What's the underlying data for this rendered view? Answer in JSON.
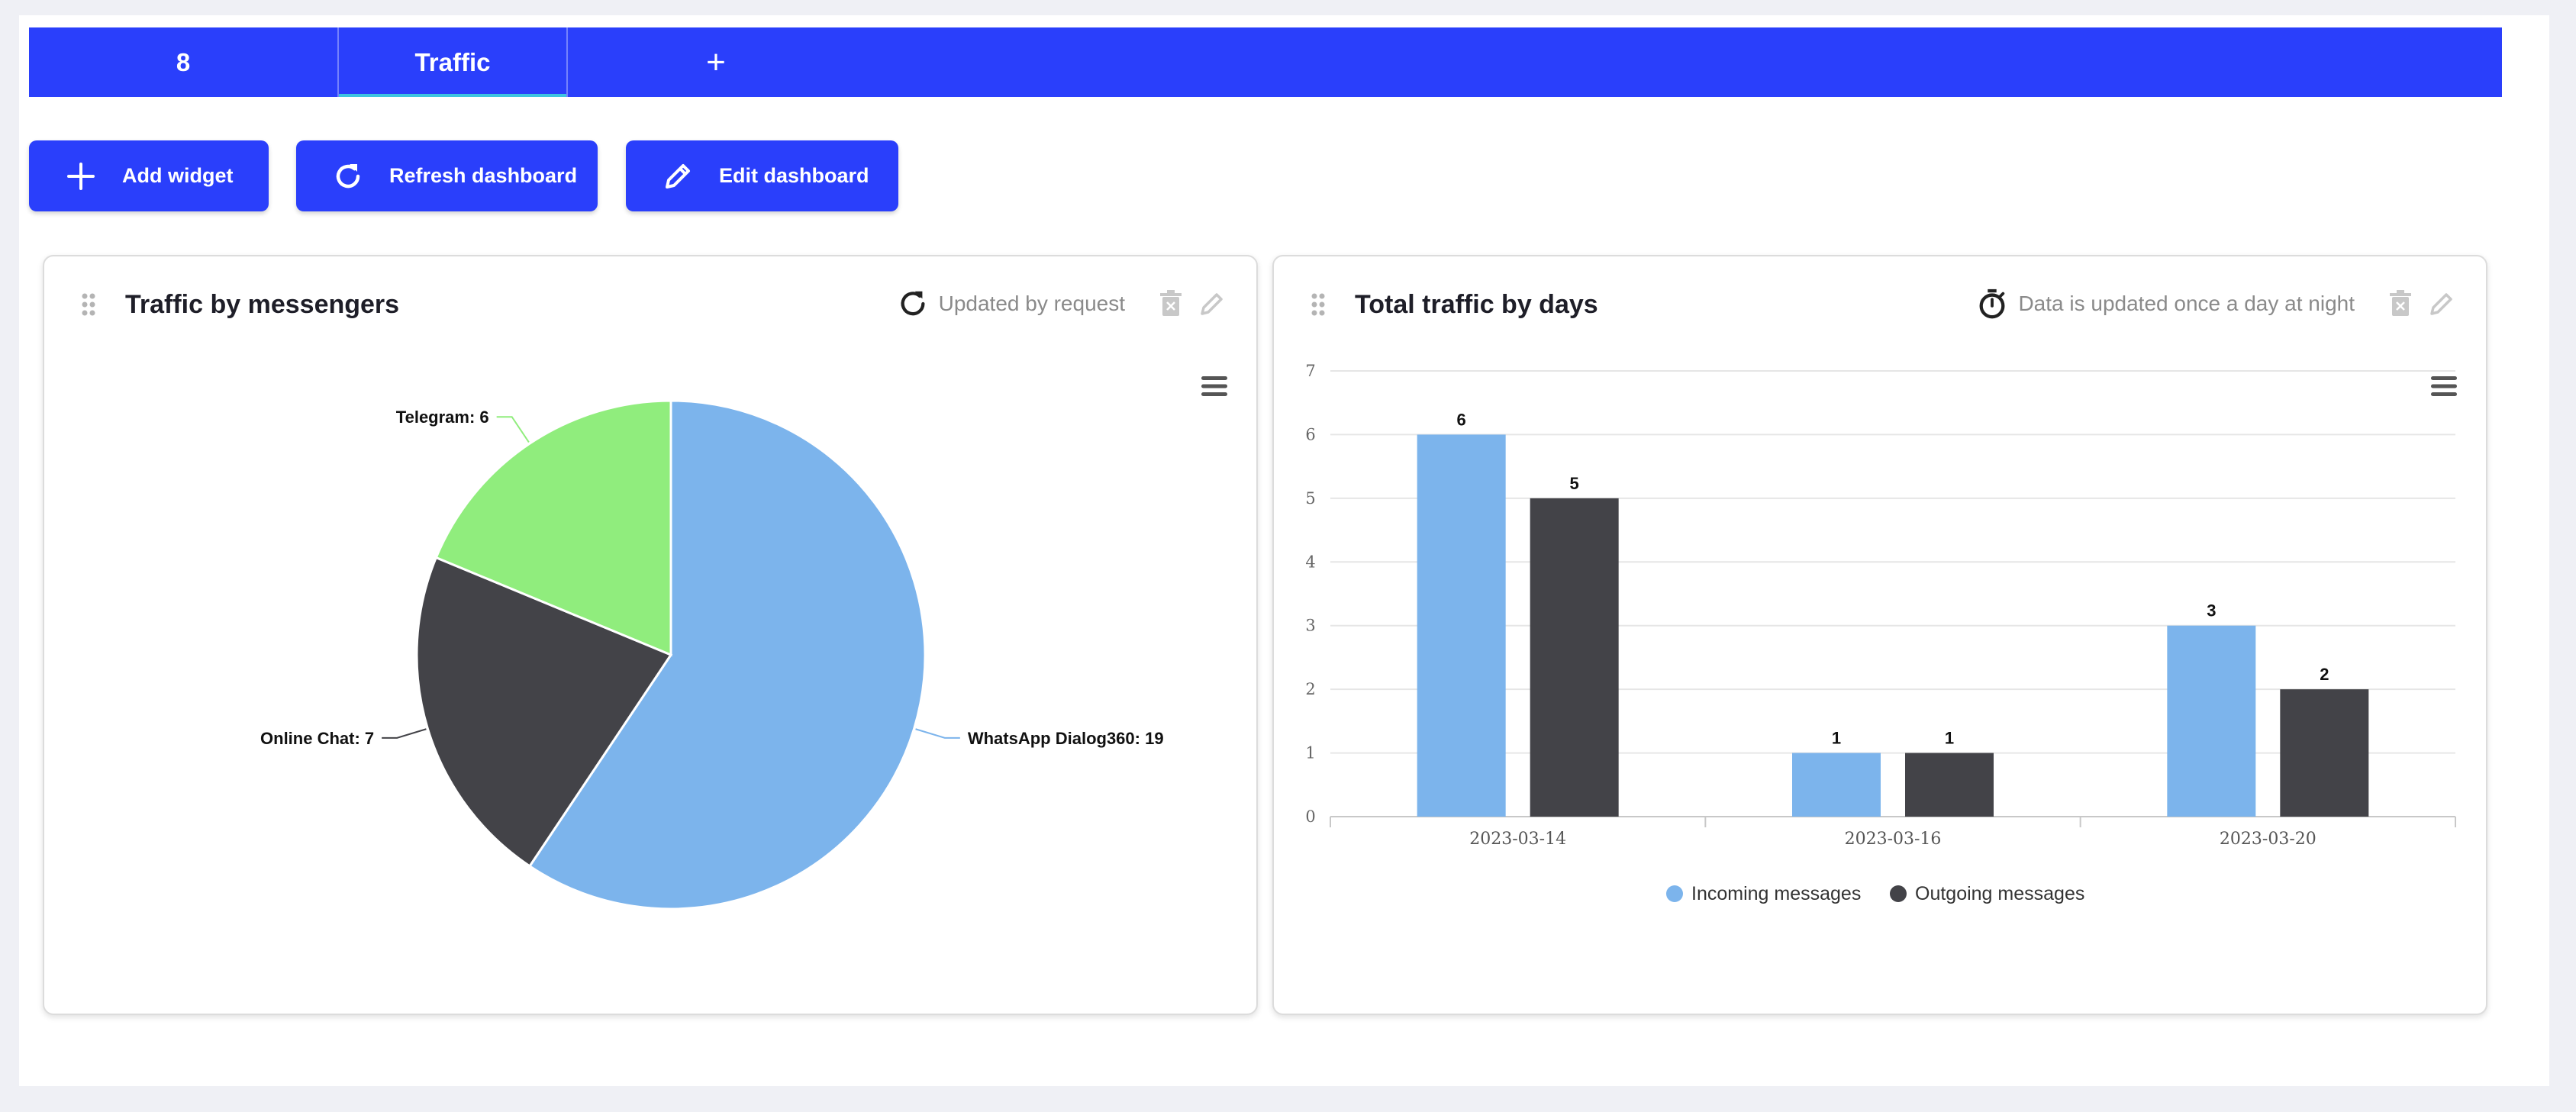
{
  "tabs": [
    {
      "label": "8"
    },
    {
      "label": "Traffic"
    },
    {
      "label": "+"
    }
  ],
  "actions": {
    "add_widget": "Add widget",
    "refresh_dashboard": "Refresh dashboard",
    "edit_dashboard": "Edit dashboard"
  },
  "widgets": [
    {
      "title": "Traffic by messengers",
      "status": "Updated by request"
    },
    {
      "title": "Total traffic by days",
      "status": "Data is updated once a day at night"
    }
  ],
  "colors": {
    "primary": "#2a3ffb",
    "incoming": "#7cb4ec",
    "outgoing": "#434348",
    "telegram": "#90ed7d"
  },
  "chart_data": [
    {
      "type": "pie",
      "title": "Traffic by messengers",
      "slices": [
        {
          "name": "WhatsApp Dialog360",
          "value": 19,
          "label": "WhatsApp Dialog360: 19",
          "color": "#7cb4ec"
        },
        {
          "name": "Online Chat",
          "value": 7,
          "label": "Online Chat: 7",
          "color": "#434348"
        },
        {
          "name": "Telegram",
          "value": 6,
          "label": "Telegram: 6",
          "color": "#90ed7d"
        }
      ]
    },
    {
      "type": "bar",
      "title": "Total traffic by days",
      "categories": [
        "2023-03-14",
        "2023-03-16",
        "2023-03-20"
      ],
      "series": [
        {
          "name": "Incoming messages",
          "values": [
            6,
            1,
            3
          ],
          "color": "#7cb4ec"
        },
        {
          "name": "Outgoing messages",
          "values": [
            5,
            1,
            2
          ],
          "color": "#434348"
        }
      ],
      "ylim": [
        0,
        7
      ],
      "yticks": [
        "0",
        "1",
        "2",
        "3",
        "4",
        "5",
        "6",
        "7"
      ],
      "grid": true,
      "legend": "bottom-center"
    }
  ]
}
